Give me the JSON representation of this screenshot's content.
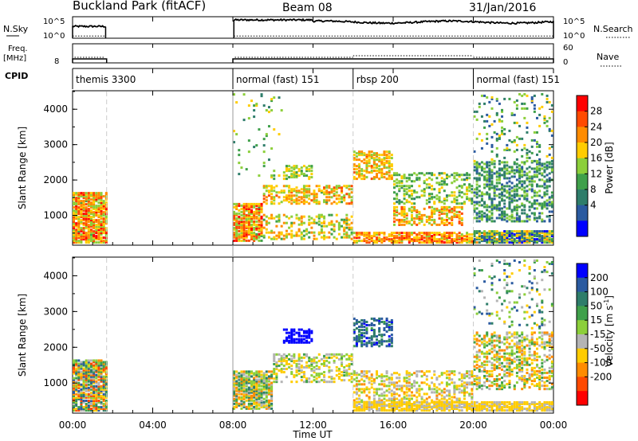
{
  "header": {
    "station": "Buckland Park (fitACF)",
    "beam": "Beam 08",
    "date": "31/Jan/2016"
  },
  "noise_panel": {
    "left_label": "N.Sky",
    "right_label": "N.Search",
    "left_ticks": [
      "10^5",
      "10^0"
    ],
    "right_ticks": [
      "10^5",
      "10^0"
    ]
  },
  "freq_panel": {
    "left_label_line1": "Freq.",
    "left_label_line2": "[MHz]",
    "left_tick": "8",
    "right_label": "Nave",
    "right_ticks": [
      "60",
      "0"
    ]
  },
  "cpid_panel": {
    "label": "CPID",
    "segments": [
      {
        "name": "themis 3300",
        "start_h": 0,
        "end_h": 1.7
      },
      {
        "name": "normal (fast) 151",
        "start_h": 8,
        "end_h": 14
      },
      {
        "name": "rbsp 200",
        "start_h": 14,
        "end_h": 20
      },
      {
        "name": "normal (fast) 151",
        "start_h": 20,
        "end_h": 24
      }
    ]
  },
  "power_colorbar": {
    "label": "Power [dB]",
    "ticks": [
      "28",
      "24",
      "20",
      "16",
      "12",
      "8",
      "4"
    ],
    "colors": [
      "#ff0000",
      "#ff4a00",
      "#ff8c00",
      "#ffcc00",
      "#8ccf3a",
      "#3fa04a",
      "#2e7d6a",
      "#2a5aa0",
      "#0000ff"
    ]
  },
  "velocity_colorbar": {
    "label": "Velocity [m s",
    "label_exp": "-1",
    "label_end": "]",
    "ticks": [
      "200",
      "100",
      "50",
      "15",
      "-15",
      "-50",
      "-100",
      "-200"
    ],
    "colors": [
      "#0000ff",
      "#2a5aa0",
      "#2e7d6a",
      "#3fa04a",
      "#8ccf3a",
      "#b4b4b4",
      "#ffcc00",
      "#ff8c00",
      "#ff4a00",
      "#ff0000"
    ]
  },
  "chart_data": {
    "type": "heatmap",
    "x_ticks": [
      "00:00",
      "04:00",
      "08:00",
      "12:00",
      "16:00",
      "20:00",
      "00:00"
    ],
    "xlabel": "Time UT",
    "xlim_hours": [
      0,
      24
    ],
    "ylabel": "Slant Range [km]",
    "y_ticks": [
      "4000",
      "3000",
      "2000",
      "1000"
    ],
    "ylim_km": [
      180,
      4500
    ],
    "data_gap_hours": [
      1.7,
      8.0
    ],
    "mode_change_hours": [
      1.7,
      14.0,
      20.0
    ],
    "power_regions": [
      {
        "t0": 0.0,
        "t1": 1.7,
        "r0": 200,
        "r1": 1600,
        "db_mean": 22,
        "db_spread": 8,
        "density": 0.85
      },
      {
        "t0": 8.0,
        "t1": 9.5,
        "r0": 250,
        "r1": 1300,
        "db_mean": 22,
        "db_spread": 8,
        "density": 0.8
      },
      {
        "t0": 9.5,
        "t1": 14.0,
        "r0": 1300,
        "r1": 1800,
        "db_mean": 20,
        "db_spread": 6,
        "density": 0.5
      },
      {
        "t0": 9.5,
        "t1": 14.0,
        "r0": 300,
        "r1": 1000,
        "db_mean": 18,
        "db_spread": 6,
        "density": 0.35
      },
      {
        "t0": 10.5,
        "t1": 12.0,
        "r0": 2000,
        "r1": 2400,
        "db_mean": 17,
        "db_spread": 4,
        "density": 0.5
      },
      {
        "t0": 14.0,
        "t1": 16.0,
        "r0": 2000,
        "r1": 2800,
        "db_mean": 20,
        "db_spread": 5,
        "density": 0.55
      },
      {
        "t0": 16.0,
        "t1": 19.5,
        "r0": 700,
        "r1": 1200,
        "db_mean": 21,
        "db_spread": 6,
        "density": 0.5
      },
      {
        "t0": 16.0,
        "t1": 20.0,
        "r0": 1300,
        "r1": 2200,
        "db_mean": 15,
        "db_spread": 5,
        "density": 0.35
      },
      {
        "t0": 14.0,
        "t1": 20.0,
        "r0": 200,
        "r1": 500,
        "db_mean": 23,
        "db_spread": 6,
        "density": 0.7
      },
      {
        "t0": 20.0,
        "t1": 24.0,
        "r0": 200,
        "r1": 550,
        "db_mean": 12,
        "db_spread": 10,
        "density": 0.9
      },
      {
        "t0": 20.0,
        "t1": 24.0,
        "r0": 800,
        "r1": 2500,
        "db_mean": 11,
        "db_spread": 6,
        "density": 0.45
      },
      {
        "t0": 20.0,
        "t1": 24.0,
        "r0": 2500,
        "r1": 4400,
        "db_mean": 12,
        "db_spread": 8,
        "density": 0.12
      },
      {
        "t0": 8.0,
        "t1": 10.5,
        "r0": 2000,
        "r1": 4400,
        "db_mean": 14,
        "db_spread": 6,
        "density": 0.05
      }
    ],
    "velocity_regions": [
      {
        "t0": 0.0,
        "t1": 1.7,
        "r0": 200,
        "r1": 1600,
        "v_mean": 0,
        "v_spread": 200,
        "density": 0.85
      },
      {
        "t0": 8.0,
        "t1": 10.0,
        "r0": 250,
        "r1": 1300,
        "v_mean": 0,
        "v_spread": 150,
        "density": 0.8
      },
      {
        "t0": 10.0,
        "t1": 14.0,
        "r0": 1000,
        "r1": 1800,
        "v_mean": -20,
        "v_spread": 80,
        "density": 0.45
      },
      {
        "t0": 10.5,
        "t1": 12.0,
        "r0": 2100,
        "r1": 2500,
        "v_mean": 220,
        "v_spread": 20,
        "density": 0.6
      },
      {
        "t0": 14.0,
        "t1": 16.0,
        "r0": 2000,
        "r1": 2800,
        "v_mean": 150,
        "v_spread": 60,
        "density": 0.5
      },
      {
        "t0": 14.0,
        "t1": 20.0,
        "r0": 300,
        "r1": 1300,
        "v_mean": -40,
        "v_spread": 80,
        "density": 0.4
      },
      {
        "t0": 14.0,
        "t1": 24.0,
        "r0": 200,
        "r1": 450,
        "v_mean": -60,
        "v_spread": 30,
        "density": 0.8
      },
      {
        "t0": 20.0,
        "t1": 24.0,
        "r0": 800,
        "r1": 2400,
        "v_mean": -30,
        "v_spread": 120,
        "density": 0.4
      },
      {
        "t0": 20.0,
        "t1": 24.0,
        "r0": 2500,
        "r1": 4400,
        "v_mean": 50,
        "v_spread": 150,
        "density": 0.12
      }
    ]
  }
}
